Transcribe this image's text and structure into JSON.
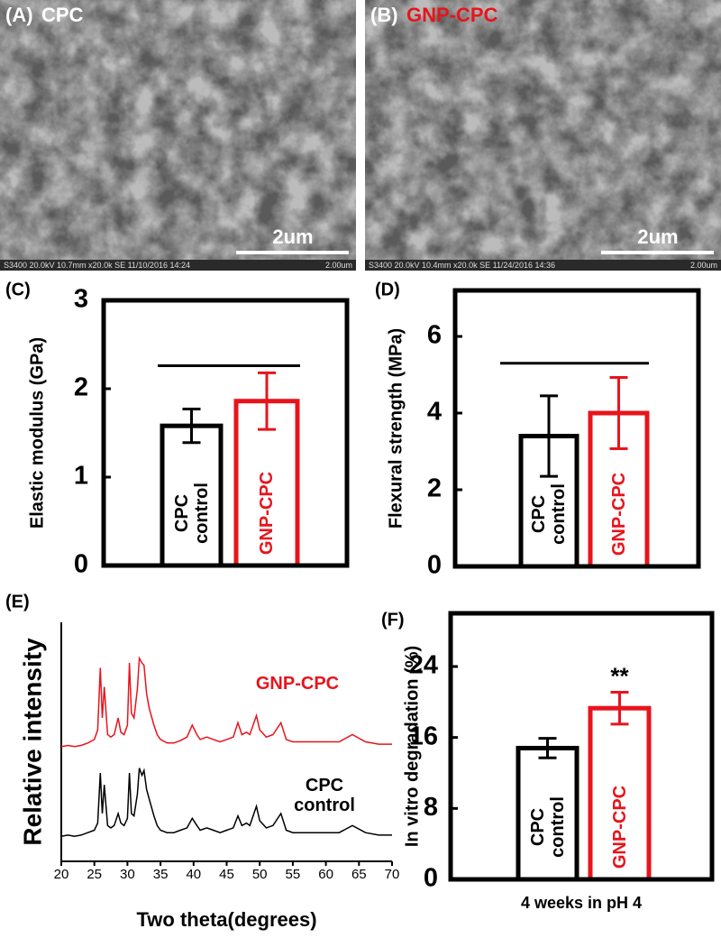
{
  "chart_data": [
    {
      "type": "image",
      "label": "(A)",
      "title": "CPC",
      "title_color": "#ffffff",
      "scale_bar": "2um",
      "footer": "S3400 20.0kV 10.7mm x20.0k SE 11/10/2016 14:24",
      "footer_scale": "2.00um"
    },
    {
      "type": "image",
      "label": "(B)",
      "title": "GNP-CPC",
      "title_color": "#e8141c",
      "scale_bar": "2um",
      "footer": "S3400 20.0kV 10.4mm x20.0k SE 11/24/2016 14:36",
      "footer_scale": "2.00um"
    },
    {
      "type": "bar",
      "label": "(C)",
      "ylabel": "Elastic modulus (GPa)",
      "categories": [
        "CPC control",
        "GNP-CPC"
      ],
      "values": [
        1.58,
        1.86
      ],
      "errors": [
        0.19,
        0.32
      ],
      "colors": [
        "#000000",
        "#e8141c"
      ],
      "ylim": [
        0,
        3
      ],
      "yticks": [
        0,
        1,
        2,
        3
      ],
      "significance_line": 2.26
    },
    {
      "type": "bar",
      "label": "(D)",
      "ylabel": "Flexural strength (MPa)",
      "categories": [
        "CPC control",
        "GNP-CPC"
      ],
      "values": [
        3.4,
        4.0
      ],
      "errors": [
        1.05,
        0.93
      ],
      "colors": [
        "#000000",
        "#e8141c"
      ],
      "ylim": [
        0,
        7.2
      ],
      "yticks": [
        0,
        2,
        4,
        6
      ],
      "significance_line": 5.3
    },
    {
      "type": "line",
      "label": "(E)",
      "ylabel": "Relative intensity",
      "xlabel": "Two theta(degrees)",
      "x": [
        20,
        21,
        22,
        23,
        24,
        25,
        25.5,
        25.9,
        26.2,
        26.5,
        27,
        27.5,
        28,
        28.6,
        29,
        29.5,
        30,
        30.3,
        30.6,
        31,
        31.5,
        31.8,
        32.2,
        32.5,
        32.9,
        33.3,
        34,
        34.5,
        35,
        36,
        37,
        38,
        39,
        39.8,
        40.5,
        41,
        42,
        43,
        44,
        45,
        46,
        46.7,
        47.3,
        48,
        48.5,
        49.5,
        50,
        51,
        52,
        53.2,
        54,
        55,
        56,
        57,
        58,
        60,
        62,
        64,
        66,
        68,
        70
      ],
      "xlim": [
        20,
        70
      ],
      "xticks": [
        20,
        25,
        30,
        35,
        40,
        45,
        50,
        55,
        60,
        65,
        70
      ],
      "ylim": [
        0,
        10
      ],
      "series": [
        {
          "name": "GNP-CPC",
          "color": "#e8141c",
          "values": [
            4.8,
            4.85,
            4.8,
            4.85,
            4.95,
            5.1,
            5.5,
            8.1,
            6.0,
            7.3,
            5.3,
            5.2,
            5.3,
            6.0,
            5.4,
            5.3,
            5.7,
            8.3,
            6.2,
            6.0,
            7.2,
            8.5,
            8.3,
            8.2,
            7.0,
            6.4,
            5.7,
            5.3,
            5.1,
            4.95,
            4.95,
            5.05,
            5.2,
            5.7,
            5.3,
            5.1,
            5.2,
            5.1,
            5.0,
            5.1,
            5.2,
            5.8,
            5.3,
            5.4,
            5.3,
            6.1,
            5.5,
            5.2,
            5.3,
            5.8,
            5.1,
            5.0,
            5.0,
            5.0,
            5.0,
            5.0,
            5.0,
            5.3,
            5.0,
            4.9,
            4.9
          ]
        },
        {
          "name": "CPC control",
          "color": "#000000",
          "values": [
            1.05,
            1.1,
            1.05,
            1.1,
            1.2,
            1.3,
            1.6,
            3.7,
            2.0,
            3.2,
            1.5,
            1.4,
            1.5,
            2.0,
            1.6,
            1.5,
            1.8,
            3.7,
            2.0,
            1.9,
            2.8,
            3.9,
            3.6,
            3.8,
            3.0,
            2.6,
            1.9,
            1.5,
            1.3,
            1.2,
            1.2,
            1.3,
            1.4,
            1.8,
            1.5,
            1.3,
            1.4,
            1.3,
            1.2,
            1.3,
            1.4,
            1.9,
            1.5,
            1.6,
            1.5,
            2.3,
            1.7,
            1.4,
            1.5,
            2.0,
            1.3,
            1.2,
            1.2,
            1.2,
            1.2,
            1.2,
            1.2,
            1.5,
            1.2,
            1.1,
            1.1
          ]
        }
      ]
    },
    {
      "type": "bar",
      "label": "(F)",
      "ylabel": "In vitro degradation (%)",
      "xlabel": "4 weeks in pH 4",
      "categories": [
        "CPC control",
        "GNP-CPC"
      ],
      "values": [
        14.8,
        19.3
      ],
      "errors": [
        1.1,
        1.8
      ],
      "colors": [
        "#000000",
        "#e8141c"
      ],
      "ylim": [
        0,
        30
      ],
      "yticks": [
        0,
        8,
        16,
        24
      ],
      "annotations": [
        {
          "category": "GNP-CPC",
          "text": "**"
        }
      ]
    }
  ]
}
